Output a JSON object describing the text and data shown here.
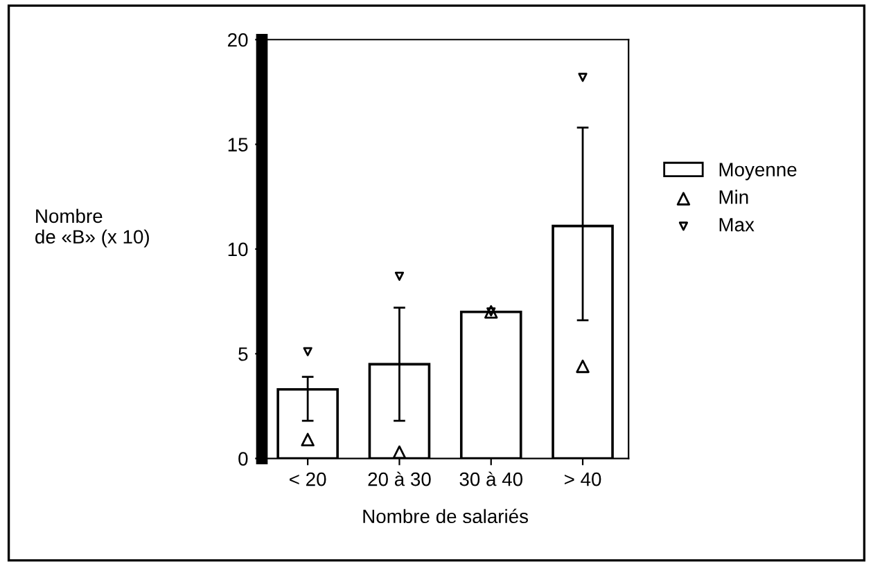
{
  "chart_data": {
    "type": "bar",
    "xlabel": "Nombre de salariés",
    "ylabel": "Nombre\nde «B» (x 10)",
    "categories": [
      "< 20",
      "20 à 30",
      "30 à 40",
      "> 40"
    ],
    "series": [
      {
        "name": "Moyenne",
        "color": "#ffffff",
        "values": [
          3.3,
          4.5,
          7.0,
          11.1
        ],
        "errors": [
          [
            1.8,
            3.9
          ],
          [
            1.8,
            7.2
          ],
          null,
          [
            6.6,
            15.8
          ]
        ]
      },
      {
        "name": "Min",
        "type": "scatter",
        "color": "#000000",
        "marker": "triangle",
        "values": [
          0.9,
          0.3,
          7.0,
          4.4
        ],
        "x": [
          "< 20",
          "20 à 30",
          "30 à 40",
          "> 40"
        ]
      },
      {
        "name": "Max",
        "type": "scatter",
        "color": "#000000",
        "marker": "triangle_down",
        "values": [
          5.1,
          8.7,
          7.0,
          18.2
        ],
        "x": [
          "< 20",
          "20 à 30",
          "30 à 40",
          "> 40"
        ]
      }
    ],
    "ylim": [
      0,
      20
    ],
    "yticks": [
      0,
      5,
      10,
      15,
      20
    ],
    "grid": false,
    "legend": "right"
  }
}
